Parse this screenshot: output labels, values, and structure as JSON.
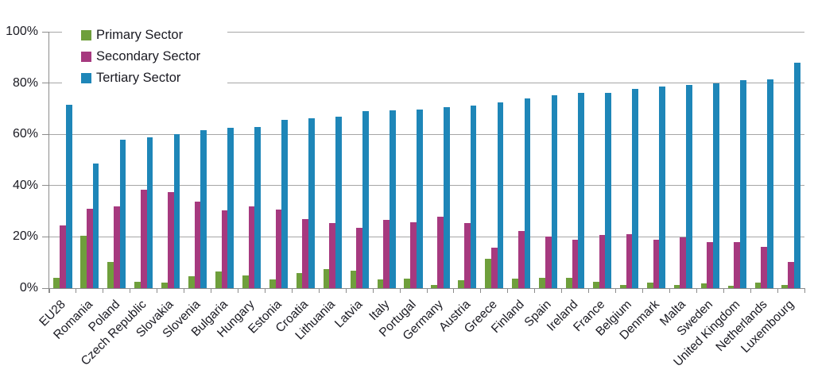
{
  "chart_data": {
    "type": "bar",
    "title": "",
    "categories": [
      "EU28",
      "Romania",
      "Poland",
      "Czech Republic",
      "Slovakia",
      "Slovenia",
      "Bulgaria",
      "Hungary",
      "Estonia",
      "Croatia",
      "Lithuania",
      "Latvia",
      "Italy",
      "Portugal",
      "Germany",
      "Austria",
      "Greece",
      "Finland",
      "Spain",
      "Ireland",
      "France",
      "Belgium",
      "Denmark",
      "Malta",
      "Sweden",
      "United Kingdom",
      "Netherlands",
      "Luxembourg"
    ],
    "series": [
      {
        "name": "Primary Sector",
        "color": "#6f9f3c",
        "values": [
          3.9,
          20.3,
          10.1,
          2.6,
          2.3,
          4.5,
          6.6,
          4.8,
          3.3,
          6.0,
          7.3,
          6.8,
          3.5,
          3.8,
          1.3,
          3.2,
          11.4,
          3.7,
          4.1,
          4.1,
          2.5,
          1.2,
          2.3,
          1.3,
          1.8,
          1.0,
          2.1,
          1.1
        ]
      },
      {
        "name": "Secondary Sector",
        "color": "#a6397f",
        "values": [
          24.4,
          31.0,
          31.8,
          38.4,
          37.5,
          33.8,
          30.3,
          31.9,
          30.8,
          26.8,
          25.3,
          23.5,
          26.5,
          25.7,
          27.8,
          25.4,
          15.7,
          22.3,
          20.2,
          19.0,
          20.7,
          20.9,
          18.8,
          19.7,
          17.9,
          18.1,
          16.2,
          10.2
        ]
      },
      {
        "name": "Tertiary Sector",
        "color": "#1e86b8",
        "values": [
          71.5,
          48.6,
          58.0,
          58.7,
          60.1,
          61.6,
          62.6,
          62.9,
          65.6,
          66.4,
          66.8,
          69.0,
          69.3,
          69.6,
          70.6,
          71.3,
          72.6,
          74.0,
          75.2,
          76.2,
          76.3,
          77.8,
          78.7,
          79.2,
          80.0,
          81.1,
          81.4,
          87.8
        ]
      }
    ],
    "xlabel": "",
    "ylabel": "",
    "ylim": [
      0,
      100
    ],
    "y_axis": {
      "ticks": [
        {
          "v": 0,
          "label": "0%"
        },
        {
          "v": 20,
          "label": "20%"
        },
        {
          "v": 40,
          "label": "40%"
        },
        {
          "v": 60,
          "label": "60%"
        },
        {
          "v": 80,
          "label": "80%"
        },
        {
          "v": 100,
          "label": "100%"
        }
      ]
    },
    "grid": true,
    "legend_position": "top-left"
  },
  "colors": {
    "gridline": "#a6a6a6",
    "axis": "#8c8c8c",
    "text": "#1a1a22",
    "background": "#ffffff"
  }
}
